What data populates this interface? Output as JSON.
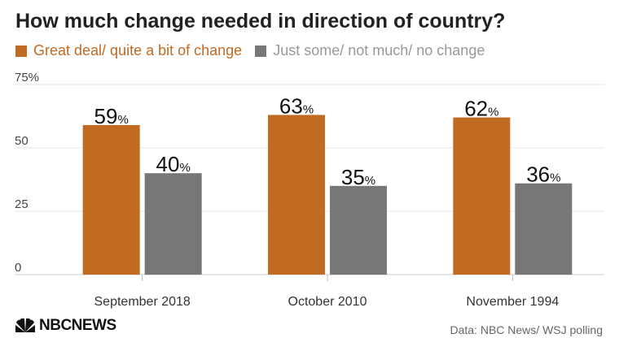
{
  "title": "How much change needed in direction of country?",
  "legend": [
    {
      "label": "Great deal/ quite a bit of change",
      "color": "#c06a22"
    },
    {
      "label": "Just some/ not much/ no change",
      "color": "#777777"
    }
  ],
  "source": "Data: NBC News/ WSJ polling",
  "logo_text": "NBCNEWS",
  "chart_data": {
    "type": "bar",
    "title": "How much change needed in direction of country?",
    "categories": [
      "September 2018",
      "October 2010",
      "November 1994"
    ],
    "series": [
      {
        "name": "Great deal/ quite a bit of change",
        "values": [
          59,
          63,
          62
        ],
        "color": "#c06a22"
      },
      {
        "name": "Just some/ not much/ no change",
        "values": [
          40,
          35,
          36
        ],
        "color": "#777777"
      }
    ],
    "yticks": [
      "0",
      "25",
      "50",
      "75%"
    ],
    "ylim": [
      0,
      75
    ],
    "value_suffix": "%",
    "xlabel": "",
    "ylabel": "",
    "grid": true,
    "legend_position": "top-left"
  }
}
